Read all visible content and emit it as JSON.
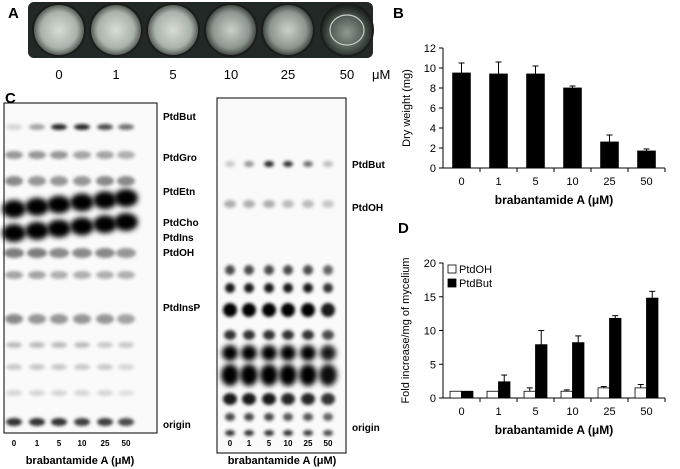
{
  "panels": {
    "a": "A",
    "b": "B",
    "c": "C",
    "d": "D"
  },
  "panel_a": {
    "labels": [
      "0",
      "1",
      "5",
      "10",
      "25",
      "50"
    ],
    "unit": "μM"
  },
  "panel_c": {
    "left": {
      "lane_labels": [
        "0",
        "1",
        "5",
        "10",
        "25",
        "50"
      ],
      "xlabel": "brabantamide A (μM)",
      "band_labels": [
        "PtdBut",
        "PtdGro",
        "PtdEtn",
        "PtdCho",
        "PtdIns",
        "PtdOH",
        "PtdInsP",
        "origin"
      ]
    },
    "right": {
      "lane_labels": [
        "0",
        "1",
        "5",
        "10",
        "25",
        "50"
      ],
      "xlabel": "brabantamide A (μM)",
      "band_labels": [
        "PtdBut",
        "PtdOH",
        "origin"
      ]
    }
  },
  "chart_data": [
    {
      "type": "bar",
      "panel": "B",
      "categories": [
        "0",
        "1",
        "5",
        "10",
        "25",
        "50"
      ],
      "values": [
        9.5,
        9.4,
        9.4,
        8.0,
        2.6,
        1.7
      ],
      "errors": [
        1.0,
        1.2,
        0.8,
        0.2,
        0.7,
        0.2
      ],
      "xlabel": "brabantamide A (μM)",
      "ylabel": "Dry weight (mg)",
      "ylim": [
        0,
        12
      ],
      "yticks": [
        0,
        2,
        4,
        6,
        8,
        10,
        12
      ],
      "bar_color": "#000000"
    },
    {
      "type": "bar",
      "panel": "D",
      "categories": [
        "0",
        "1",
        "5",
        "10",
        "25",
        "50"
      ],
      "series": [
        {
          "name": "PtdOH",
          "values": [
            1.0,
            1.0,
            1.0,
            1.0,
            1.5,
            1.5
          ],
          "errors": [
            0.0,
            0.0,
            0.5,
            0.2,
            0.2,
            0.5
          ],
          "color": "#ffffff"
        },
        {
          "name": "PtdBut",
          "values": [
            1.0,
            2.4,
            7.9,
            8.2,
            11.8,
            14.8
          ],
          "errors": [
            0.0,
            1.0,
            2.1,
            1.0,
            0.4,
            1.0
          ],
          "color": "#000000"
        }
      ],
      "xlabel": "brabantamide A (μM)",
      "ylabel": "Fold increase/mg of mycelium",
      "ylim": [
        0,
        20
      ],
      "yticks": [
        0,
        5,
        10,
        15,
        20
      ],
      "legend": "top-left"
    }
  ]
}
